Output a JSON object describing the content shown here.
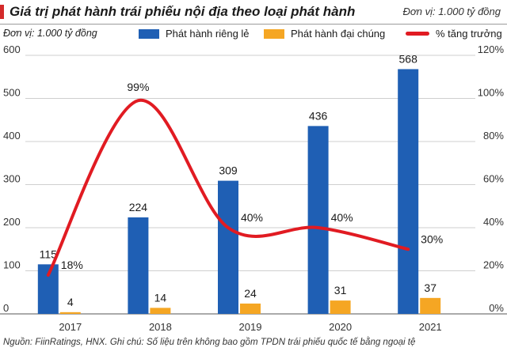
{
  "header": {
    "title": "Giá trị phát hành trái phiếu nội địa theo loại phát hành",
    "unit_right": "Đơn vị: 1.000 tỷ đồng",
    "unit_left": "Đơn vị: 1.000 tỷ đồng"
  },
  "legend": {
    "private": "Phát hành riêng lẻ",
    "public": "Phát hành đại chúng",
    "growth": "% tăng trưởng"
  },
  "footer": "Nguồn: FiinRatings, HNX. Ghi chú: Số liệu trên không bao gồm TPDN trái phiếu quốc tế bằng ngoại tệ",
  "colors": {
    "private": "#1f5fb4",
    "public": "#f5a623",
    "growth": "#e11b22",
    "accent": "#d42a2a"
  },
  "chart_data": {
    "type": "bar",
    "title": "Giá trị phát hành trái phiếu nội địa theo loại phát hành",
    "categories": [
      "2017",
      "2018",
      "2019",
      "2020",
      "2021"
    ],
    "series": [
      {
        "name": "Phát hành riêng lẻ",
        "type": "bar",
        "axis": "left",
        "values": [
          115,
          224,
          309,
          436,
          568
        ],
        "labels": [
          "115",
          "224",
          "309",
          "436",
          "568"
        ]
      },
      {
        "name": "Phát hành đại chúng",
        "type": "bar",
        "axis": "left",
        "values": [
          4,
          14,
          24,
          31,
          37
        ],
        "labels": [
          "4",
          "14",
          "24",
          "31",
          "37"
        ]
      },
      {
        "name": "% tăng trưởng",
        "type": "line",
        "axis": "right",
        "values": [
          18,
          99,
          40,
          40,
          30
        ],
        "labels": [
          "18%",
          "99%",
          "40%",
          "40%",
          "30%"
        ]
      }
    ],
    "y_left": {
      "min": 0,
      "max": 600,
      "ticks": [
        "0",
        "100",
        "200",
        "300",
        "400",
        "500",
        "600"
      ]
    },
    "y_right": {
      "min": 0,
      "max": 120,
      "ticks": [
        "0%",
        "20%",
        "40%",
        "60%",
        "80%",
        "100%",
        "120%"
      ]
    },
    "grid": true,
    "legend_position": "top"
  }
}
